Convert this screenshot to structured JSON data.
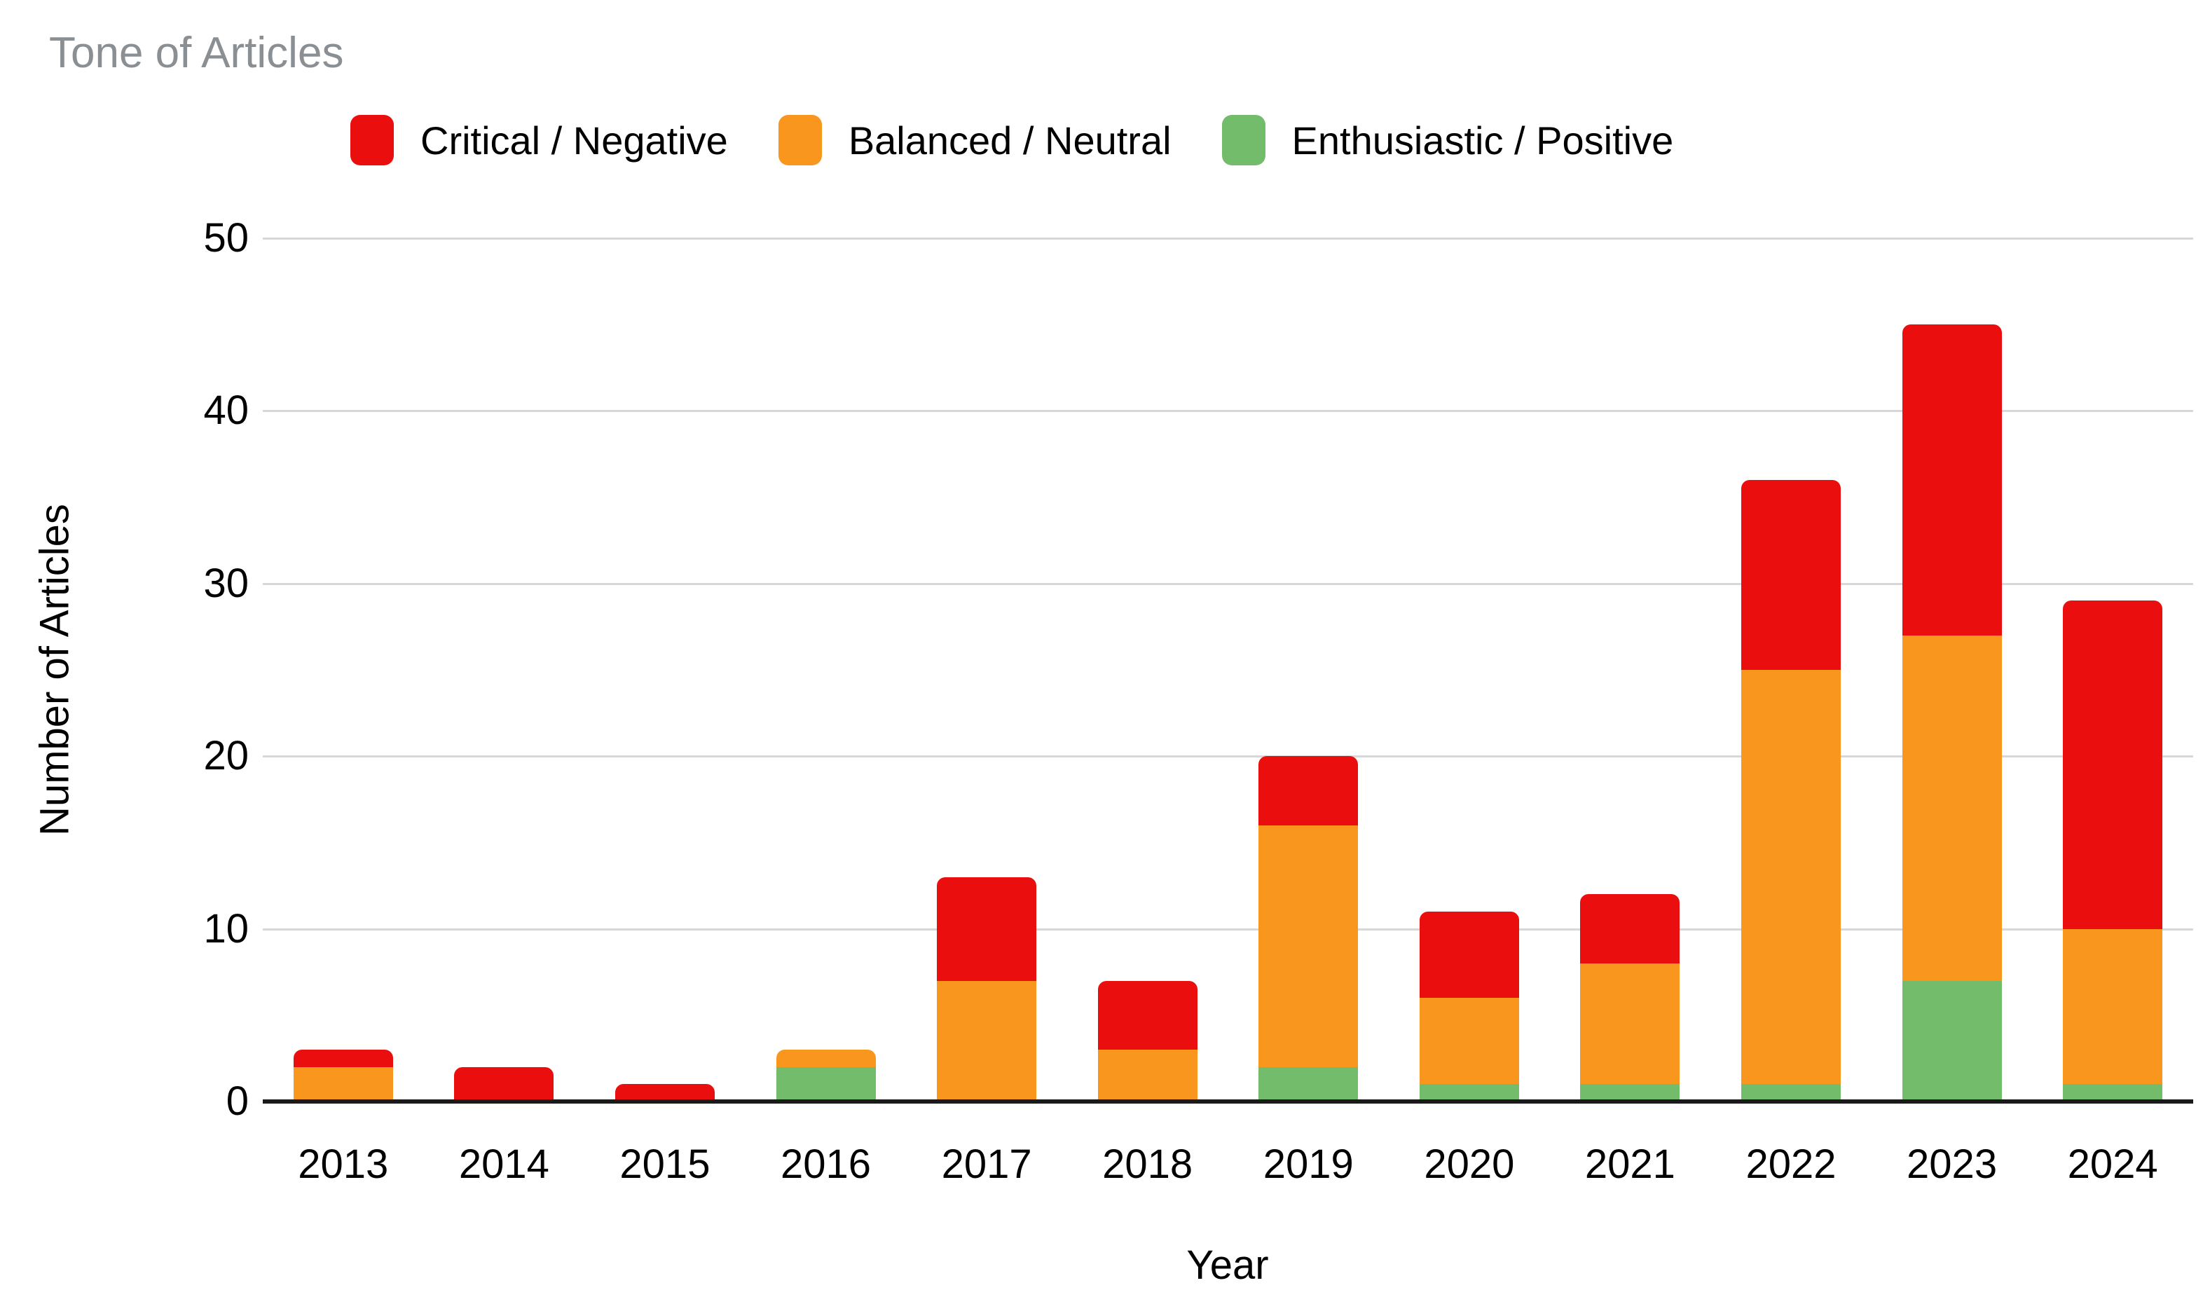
{
  "title": "Tone of Articles",
  "axes": {
    "x_title": "Year",
    "y_title": "Number of Articles",
    "y_ticks": [
      0,
      10,
      20,
      30,
      40,
      50
    ]
  },
  "colors": {
    "critical_negative": "#eb0e0e",
    "balanced_neutral": "#f9961e",
    "enthusiastic_positive": "#72bc6b",
    "title_gray": "#8a8f94",
    "gridline": "#d8d8d8",
    "axis_line": "#1a1a1a"
  },
  "chart_data": {
    "type": "bar",
    "stacked": true,
    "title": "Tone of Articles",
    "xlabel": "Year",
    "ylabel": "Number of Articles",
    "ylim": [
      0,
      50
    ],
    "y_tick_step": 10,
    "grid": true,
    "legend_position": "top",
    "categories": [
      "2013",
      "2014",
      "2015",
      "2016",
      "2017",
      "2018",
      "2019",
      "2020",
      "2021",
      "2022",
      "2023",
      "2024"
    ],
    "series": [
      {
        "name": "Critical / Negative",
        "color": "#eb0e0e",
        "values": [
          1,
          2,
          1,
          0,
          6,
          4,
          4,
          5,
          4,
          11,
          18,
          19
        ]
      },
      {
        "name": "Balanced / Neutral",
        "color": "#f9961e",
        "values": [
          2,
          0,
          0,
          1,
          7,
          3,
          14,
          5,
          7,
          24,
          20,
          9
        ]
      },
      {
        "name": "Enthusiastic / Positive",
        "color": "#72bc6b",
        "values": [
          0,
          0,
          0,
          2,
          0,
          0,
          2,
          1,
          1,
          1,
          7,
          1
        ]
      }
    ],
    "stack_order_bottom_to_top": [
      "Enthusiastic / Positive",
      "Balanced / Neutral",
      "Critical / Negative"
    ]
  }
}
